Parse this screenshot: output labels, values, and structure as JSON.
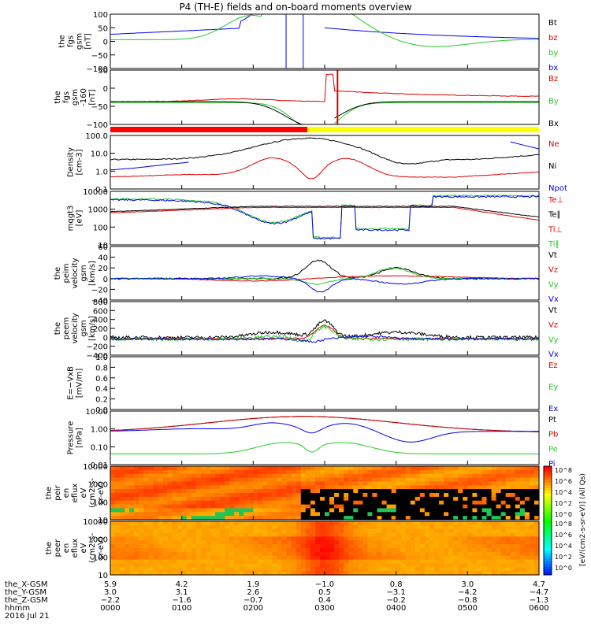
{
  "title": "P4 (TH-E) fields and on-board moments overview",
  "colors": {
    "black": "#000000",
    "red": "#dd0000",
    "green": "#22cc22",
    "blue": "#0000ee",
    "yellow": "#ffff00",
    "redbar": "#ff0000"
  },
  "chart_data": [
    {
      "id": "fgs",
      "type": "line",
      "ylabel": [
        "the",
        "fgs",
        "gsm",
        "[nT]"
      ],
      "yticks": [
        "100",
        "50",
        "0",
        "−50",
        "−100"
      ],
      "ylim": [
        -100,
        100
      ],
      "legend": [
        {
          "name": "Bt",
          "color": "black"
        },
        {
          "name": "bz",
          "color": "red"
        },
        {
          "name": "by",
          "color": "green"
        },
        {
          "name": "bx",
          "color": "blue"
        }
      ]
    },
    {
      "id": "fgs_b",
      "type": "line",
      "ylabel": [
        "the",
        "fgs",
        "gsm",
        "-160",
        "[nT]"
      ],
      "yticks": [
        "50",
        "0",
        "−50",
        "−100"
      ],
      "ylim": [
        -120,
        70
      ],
      "legend": [
        {
          "name": "Bz",
          "color": "red"
        },
        {
          "name": "By",
          "color": "green"
        },
        {
          "name": "Bx",
          "color": "black"
        }
      ]
    },
    {
      "id": "density",
      "type": "line",
      "scale": "log",
      "ylabel": [
        "Density",
        "[cm-3]"
      ],
      "yticks": [
        "100.0",
        "10.0",
        "1.0",
        "0.1"
      ],
      "legend": [
        {
          "name": "Ne",
          "color": "red"
        },
        {
          "name": "Ni",
          "color": "black"
        },
        {
          "name": "Npot",
          "color": "blue"
        }
      ]
    },
    {
      "id": "temp",
      "type": "line",
      "scale": "log",
      "ylabel": [
        "mqgt3",
        "[eV]"
      ],
      "yticks": [
        "10000",
        "1000",
        "100",
        "10"
      ],
      "legend": [
        {
          "name": "Te⊥",
          "color": "red"
        },
        {
          "name": "Te∥",
          "color": "black"
        },
        {
          "name": "Ti⊥",
          "color": "red"
        },
        {
          "name": "Ti∥",
          "color": "green"
        }
      ]
    },
    {
      "id": "peim",
      "type": "line",
      "ylabel": [
        "the",
        "peim",
        "velocity",
        "gsm",
        "[km/s]"
      ],
      "yticks": [
        "60",
        "40",
        "20",
        "0",
        "−20",
        "−40"
      ],
      "ylim": [
        -40,
        60
      ],
      "legend": [
        {
          "name": "Vt",
          "color": "black"
        },
        {
          "name": "Vz",
          "color": "red"
        },
        {
          "name": "Vy",
          "color": "green"
        },
        {
          "name": "Vx",
          "color": "blue"
        }
      ]
    },
    {
      "id": "peem",
      "type": "line",
      "ylabel": [
        "the",
        "peem",
        "velocity",
        "gsm",
        "[km/s]"
      ],
      "yticks": [
        "800",
        "600",
        "400",
        "200",
        "0",
        "−200",
        "−400"
      ],
      "ylim": [
        -400,
        800
      ],
      "legend": [
        {
          "name": "Vt",
          "color": "black"
        },
        {
          "name": "Vz",
          "color": "red"
        },
        {
          "name": "Vy",
          "color": "green"
        },
        {
          "name": "Vx",
          "color": "blue"
        }
      ]
    },
    {
      "id": "efield",
      "type": "line",
      "ylabel": [
        "E=−VxB",
        "[mV/m]"
      ],
      "yticks": [
        "1.0",
        "0.8",
        "0.6",
        "0.4",
        "0.2",
        "0.0"
      ],
      "ylim": [
        0,
        1
      ],
      "legend": [
        {
          "name": "Ez",
          "color": "red"
        },
        {
          "name": "Ey",
          "color": "green"
        },
        {
          "name": "Ex",
          "color": "blue"
        }
      ]
    },
    {
      "id": "pressure",
      "type": "line",
      "scale": "log",
      "ylabel": [
        "Pressure",
        "[nPa]"
      ],
      "yticks": [
        "10.00",
        "1.00",
        "0.10",
        "0.01"
      ],
      "legend": [
        {
          "name": "Pt",
          "color": "black"
        },
        {
          "name": "Pb",
          "color": "red"
        },
        {
          "name": "Pe",
          "color": "green"
        },
        {
          "name": "Pi",
          "color": "blue"
        }
      ]
    },
    {
      "id": "peir",
      "type": "heatmap",
      "ylabel": [
        "the",
        "peir",
        "en",
        "eflux",
        "eV",
        "(cm2-s-",
        "sr-eV)"
      ],
      "yticks": [
        "10000",
        "1000",
        "100",
        "10"
      ]
    },
    {
      "id": "peer",
      "type": "heatmap",
      "ylabel": [
        "the",
        "peer",
        "en",
        "eflux",
        "eV",
        "(cm2-s-",
        "sr-eV)"
      ],
      "yticks": [
        "10000",
        "1000",
        "100",
        "10"
      ]
    }
  ],
  "colorbar": {
    "label": "[eV/(cm2-s-sr-eV)] (All Qs)",
    "ticks": [
      "10^8",
      "10^6",
      "10^4",
      "10^2",
      "10^0"
    ],
    "ticks2": [
      "10^8",
      "10^6",
      "10^4",
      "10^2",
      "10^0"
    ]
  },
  "footer": {
    "rows": [
      {
        "label": "the_X-GSM",
        "values": [
          "5.9",
          "4.2",
          "1.9",
          "−1.0",
          "0.8",
          "3.0",
          "4.7"
        ]
      },
      {
        "label": "the_Y-GSM",
        "values": [
          "3.0",
          "3.1",
          "2.6",
          "0.5",
          "−3.1",
          "−4.2",
          "−4.7"
        ]
      },
      {
        "label": "the_Z-GSM",
        "values": [
          "−2.2",
          "−1.6",
          "−0.7",
          "0.4",
          "−0.2",
          "−0.8",
          "−1.3"
        ]
      },
      {
        "label": "hhmm",
        "values": [
          "0000",
          "0100",
          "0200",
          "0300",
          "0400",
          "0500",
          "0600"
        ]
      }
    ],
    "date": "2016 Jul 21"
  }
}
